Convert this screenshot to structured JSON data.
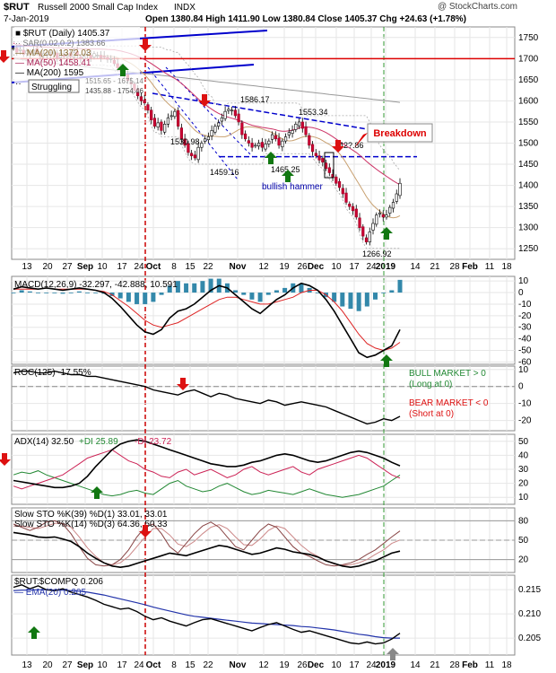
{
  "header": {
    "symbol": "$RUT",
    "name": "Russell 2000 Small Cap Index",
    "exchange": "INDX",
    "date": "7-Jan-2019",
    "watermark": "@ StockCharts.com",
    "ohlc_text": "Open 1380.84  High 1411.90  Low 1380.84  Close 1405.37  Chg +24.63 (+1.78%)",
    "change_arrow": "▲"
  },
  "legend": {
    "main": "■ $RUT (Daily) 1405.37",
    "sar": "·· SAR(0.02,0.2) 1383.66",
    "ma20": "— MA(20) 1372.03",
    "ma50": "— MA(50) 1458.41",
    "ma200": "— MA(200) 1595",
    "pc": "··",
    "pc_vals": "1515.65 - 1675.14",
    "pc_vals2": "1435.88 - 1754.46",
    "annot_struggling": "Struggling"
  },
  "annotations": {
    "breakdown": "Breakdown",
    "bullish_hammer": "bullish hammer",
    "bull_market": "BULL MARKET > 0",
    "bull_sub": "(Long at 0)",
    "bear_market": "BEAR MARKET < 0",
    "bear_sub": "(Short at 0)",
    "price_labels": [
      "1586.17",
      "1553.34",
      "1530.98",
      "1459.16",
      "1465.25",
      "1266.92",
      "142?.86"
    ]
  },
  "panels": {
    "macd": "MACD(12,26,9) -32.297, -42.888, 10.591",
    "roc": "ROC(125) -17.55%",
    "adx_a": "ADX(14) 32.50",
    "adx_b": "+DI 25.89",
    "adx_c": "-DI 23.72",
    "sto_a": "Slow STO %K(39) %D(1) 33.01, 33.01",
    "sto_b": "Slow STO %K(14) %D(3) 64.36, 50.33",
    "rel": "$RUT:$COMPQ 0.206",
    "rel_ema": "— EMA(20) 0.205"
  },
  "x_axis_labels": [
    "13",
    "20",
    "27",
    "Sep",
    "10",
    "17",
    "24",
    "Oct",
    "8",
    "15",
    "22",
    "Nov",
    "12",
    "19",
    "26",
    "Dec",
    "10",
    "17",
    "24",
    "2019",
    "14",
    "21",
    "28",
    "Feb",
    "11",
    "18"
  ],
  "colors": {
    "price_up": "#ffffff",
    "price_down": "#cc0033",
    "ma20": "#c8a070",
    "ma50": "#cc3366",
    "ma200": "#999999",
    "macd_line": "#000000",
    "signal_line": "#dd2222",
    "histogram": "#3388aa",
    "plus_di": "#228833",
    "minus_di": "#cc2255",
    "ema": "#2233aa",
    "arrow_up": "#117711",
    "arrow_down": "#dd1111",
    "annot_blue": "#0000aa"
  },
  "chart_data": [
    {
      "type": "candlestick",
      "title": "$RUT Russell 2000 Small Cap Index INDX",
      "ylim": [
        1225,
        1775
      ],
      "y_ticks": [
        1250,
        1300,
        1350,
        1400,
        1450,
        1500,
        1550,
        1600,
        1650,
        1700,
        1750
      ],
      "x_label_dates": [
        "Aug 13",
        "Aug 20",
        "Aug 27",
        "Sep 4",
        "Sep 10",
        "Sep 17",
        "Sep 24",
        "Oct 1",
        "Oct 8",
        "Oct 15",
        "Oct 22",
        "Nov 1",
        "Nov 12",
        "Nov 19",
        "Nov 26",
        "Dec 3",
        "Dec 10",
        "Dec 17",
        "Dec 24",
        "Jan 2",
        "Jan 14",
        "Jan 21",
        "Jan 28",
        "Feb 1",
        "Feb 11",
        "Feb 18"
      ],
      "series": [
        {
          "name": "$RUT (Daily)",
          "close": [
            1725,
            1715,
            1722,
            1710,
            1718,
            1712,
            1720,
            1715,
            1705,
            1712,
            1710,
            1708,
            1715,
            1700,
            1712,
            1705,
            1710,
            1705,
            1715,
            1708,
            1700,
            1705,
            1710,
            1702,
            1712,
            1708,
            1702,
            1705,
            1698,
            1700,
            1688,
            1678,
            1670,
            1660,
            1648,
            1640,
            1625,
            1612,
            1600,
            1595,
            1578,
            1555,
            1540,
            1548,
            1530,
            1545,
            1560,
            1565,
            1575,
            1540,
            1510,
            1495,
            1478,
            1470,
            1465,
            1490,
            1500,
            1510,
            1515,
            1530,
            1540,
            1548,
            1560,
            1575,
            1580,
            1578,
            1565,
            1550,
            1520,
            1510,
            1500,
            1490,
            1495,
            1500,
            1490,
            1498,
            1505,
            1520,
            1510,
            1495,
            1505,
            1515,
            1525,
            1530,
            1545,
            1550,
            1535,
            1520,
            1495,
            1480,
            1470,
            1460,
            1455,
            1440,
            1430,
            1420,
            1405,
            1395,
            1380,
            1360,
            1350,
            1340,
            1325,
            1300,
            1280,
            1266,
            1290,
            1310,
            1330,
            1335,
            1325,
            1330,
            1348,
            1360,
            1380,
            1405
          ]
        }
      ],
      "moving_averages": {
        "MA20": 1372.03,
        "MA50": 1458.41,
        "MA200": 1595
      },
      "horizontal_lines": [
        1700,
        1468
      ]
    },
    {
      "type": "bar+line",
      "title": "MACD(12,26,9) -32.297, -42.888, 10.591",
      "ylim": [
        -62,
        14
      ],
      "y_ticks": [
        10,
        0,
        -10,
        -20,
        -30,
        -40,
        -50,
        -60
      ],
      "series": [
        {
          "name": "MACD(12,26,9)",
          "values": [
            3,
            5,
            4,
            3,
            4,
            3,
            2,
            3,
            4,
            3,
            2,
            0,
            -5,
            -12,
            -20,
            -28,
            -34,
            -36,
            -32,
            -22,
            -16,
            -14,
            -10,
            -4,
            2,
            6,
            4,
            -2,
            -8,
            -14,
            -18,
            -12,
            -6,
            -2,
            4,
            8,
            6,
            2,
            -6,
            -16,
            -28,
            -40,
            -52,
            -56,
            -54,
            -50,
            -46,
            -32
          ]
        },
        {
          "name": "Signal",
          "values": [
            3,
            3,
            3,
            3,
            4,
            3,
            3,
            3,
            3,
            3,
            2,
            1,
            -2,
            -7,
            -12,
            -18,
            -24,
            -28,
            -30,
            -28,
            -26,
            -22,
            -18,
            -14,
            -10,
            -6,
            -4,
            -4,
            -6,
            -8,
            -10,
            -10,
            -8,
            -6,
            -4,
            0,
            2,
            2,
            -2,
            -8,
            -16,
            -26,
            -36,
            -44,
            -48,
            -50,
            -48,
            -43
          ]
        }
      ]
    },
    {
      "type": "line",
      "title": "ROC(125) -17.55%",
      "ylim": [
        -26,
        12
      ],
      "y_ticks": [
        10,
        0,
        -10,
        -20
      ],
      "series": [
        {
          "name": "ROC(125)",
          "values": [
            8,
            9,
            9,
            8,
            8,
            9,
            8,
            7,
            7,
            6,
            6,
            5,
            4,
            3,
            2,
            1,
            0,
            -2,
            -3,
            -4,
            -5,
            -3,
            -2,
            -4,
            -6,
            -4,
            -5,
            -7,
            -8,
            -9,
            -10,
            -8,
            -9,
            -11,
            -10,
            -9,
            -10,
            -11,
            -12,
            -14,
            -16,
            -18,
            -20,
            -22,
            -21,
            -19,
            -20,
            -17.55
          ]
        }
      ]
    },
    {
      "type": "line",
      "title": "ADX(14) 32.50 +DI 25.89 -DI 23.72",
      "ylim": [
        5,
        55
      ],
      "y_ticks": [
        10,
        20,
        30,
        40,
        50
      ],
      "series": [
        {
          "name": "ADX(14)",
          "values": [
            22,
            21,
            20,
            19,
            18,
            17,
            17,
            18,
            20,
            25,
            32,
            38,
            44,
            48,
            50,
            51,
            50,
            48,
            46,
            44,
            42,
            40,
            38,
            36,
            34,
            33,
            32,
            32,
            33,
            35,
            36,
            38,
            40,
            41,
            40,
            38,
            36,
            35,
            36,
            38,
            40,
            42,
            43,
            42,
            40,
            38,
            35,
            32.5
          ]
        },
        {
          "name": "+DI",
          "values": [
            26,
            28,
            27,
            29,
            26,
            24,
            22,
            20,
            18,
            16,
            14,
            12,
            11,
            12,
            14,
            15,
            13,
            12,
            16,
            20,
            22,
            18,
            16,
            14,
            15,
            18,
            20,
            17,
            14,
            12,
            13,
            15,
            14,
            13,
            12,
            14,
            16,
            14,
            12,
            11,
            10,
            11,
            12,
            14,
            16,
            18,
            22,
            25.89
          ]
        },
        {
          "name": "-DI",
          "values": [
            18,
            16,
            18,
            20,
            22,
            24,
            26,
            30,
            34,
            38,
            40,
            42,
            44,
            40,
            36,
            34,
            30,
            28,
            25,
            24,
            28,
            30,
            26,
            28,
            30,
            27,
            24,
            26,
            30,
            32,
            28,
            26,
            28,
            30,
            32,
            28,
            26,
            30,
            32,
            34,
            36,
            38,
            40,
            38,
            34,
            30,
            26,
            23.72
          ]
        }
      ]
    },
    {
      "type": "line",
      "title": "Slow STO %K(39) %D(1) 33.01, 33.01 / Slow STO %K(14) %D(3) 64.36, 50.33",
      "ylim": [
        0,
        100
      ],
      "y_ticks": [
        20,
        50,
        80
      ],
      "series": [
        {
          "name": "%K(39)",
          "values": [
            62,
            60,
            58,
            55,
            54,
            55,
            52,
            48,
            40,
            30,
            22,
            15,
            10,
            8,
            10,
            14,
            18,
            22,
            26,
            30,
            28,
            26,
            30,
            34,
            38,
            42,
            40,
            36,
            32,
            28,
            30,
            34,
            38,
            36,
            32,
            30,
            28,
            24,
            18,
            14,
            10,
            8,
            10,
            14,
            18,
            24,
            30,
            33.01
          ]
        },
        {
          "name": "%K(14)",
          "values": [
            75,
            70,
            65,
            70,
            78,
            80,
            75,
            60,
            40,
            22,
            12,
            10,
            12,
            20,
            35,
            55,
            70,
            75,
            60,
            40,
            30,
            45,
            60,
            72,
            78,
            70,
            55,
            40,
            35,
            50,
            65,
            75,
            70,
            55,
            40,
            30,
            25,
            18,
            12,
            10,
            12,
            15,
            20,
            28,
            35,
            45,
            55,
            64.36
          ]
        },
        {
          "name": "%D(3)",
          "values": [
            72,
            72,
            70,
            68,
            72,
            76,
            76,
            70,
            55,
            38,
            25,
            15,
            12,
            15,
            25,
            40,
            55,
            68,
            68,
            58,
            44,
            40,
            48,
            60,
            70,
            74,
            68,
            55,
            43,
            42,
            52,
            65,
            72,
            68,
            55,
            42,
            32,
            25,
            18,
            13,
            11,
            12,
            15,
            20,
            28,
            35,
            45,
            50.33
          ]
        }
      ]
    },
    {
      "type": "line",
      "title": "$RUT:$COMPQ 0.206",
      "ylim": [
        0.2015,
        0.218
      ],
      "y_ticks": [
        0.205,
        0.21,
        0.215
      ],
      "series": [
        {
          "name": "$RUT:$COMPQ",
          "values": [
            0.2155,
            0.216,
            0.2152,
            0.2158,
            0.215,
            0.2148,
            0.2152,
            0.2145,
            0.214,
            0.2135,
            0.2128,
            0.212,
            0.2115,
            0.211,
            0.2112,
            0.2105,
            0.2095,
            0.2088,
            0.2092,
            0.2085,
            0.208,
            0.2075,
            0.2082,
            0.2088,
            0.209,
            0.2085,
            0.208,
            0.2075,
            0.207,
            0.2065,
            0.2072,
            0.2078,
            0.2082,
            0.2075,
            0.2068,
            0.2062,
            0.2065,
            0.206,
            0.2055,
            0.205,
            0.2045,
            0.204,
            0.2038,
            0.2042,
            0.2038,
            0.204,
            0.2048,
            0.206
          ]
        },
        {
          "name": "EMA(20)",
          "values": [
            0.2148,
            0.2149,
            0.2149,
            0.215,
            0.215,
            0.2149,
            0.2149,
            0.2148,
            0.2147,
            0.2145,
            0.2142,
            0.2139,
            0.2135,
            0.2131,
            0.2127,
            0.2123,
            0.2119,
            0.2114,
            0.211,
            0.2106,
            0.2102,
            0.2098,
            0.2095,
            0.2093,
            0.2091,
            0.2089,
            0.2087,
            0.2085,
            0.2083,
            0.2081,
            0.208,
            0.2079,
            0.2078,
            0.2077,
            0.2076,
            0.2074,
            0.2073,
            0.2071,
            0.2069,
            0.2067,
            0.2064,
            0.2061,
            0.2058,
            0.2056,
            0.2053,
            0.2051,
            0.205,
            0.205
          ]
        }
      ]
    }
  ]
}
